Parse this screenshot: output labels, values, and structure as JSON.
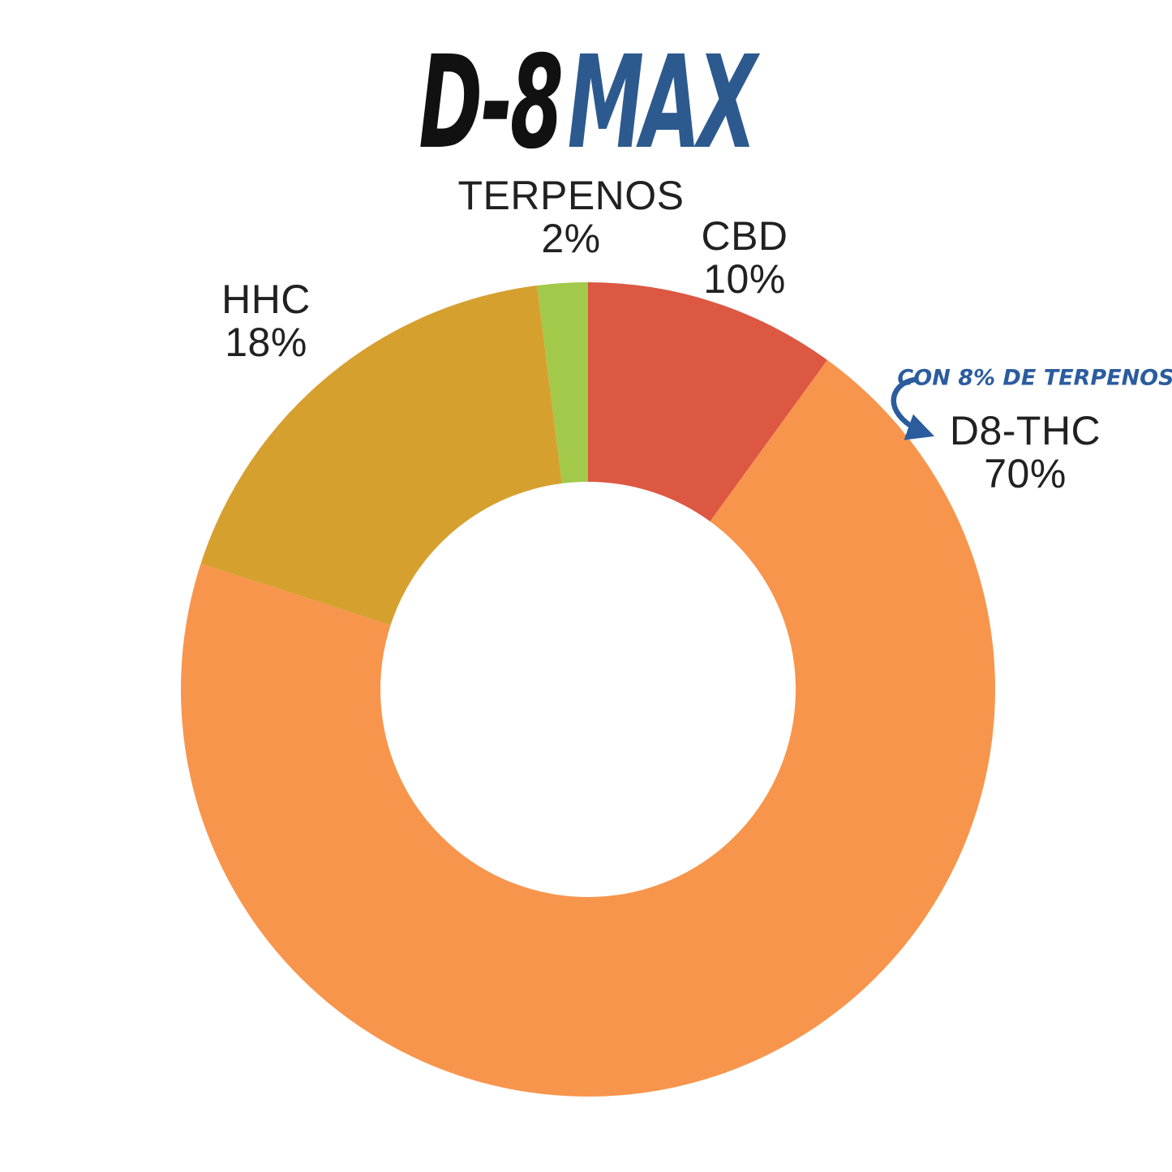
{
  "title": {
    "part1": "D-8",
    "part2": "MAX"
  },
  "chart_data": {
    "type": "donut",
    "title": "D-8 MAX",
    "direction": "clockwise",
    "start_angle_deg": 0,
    "inner_radius_ratio": 0.51,
    "segments": [
      {
        "label": "CBD",
        "value": 10,
        "value_label": "10%",
        "color": "#dc5843"
      },
      {
        "label": "D8-THC",
        "value": 70,
        "value_label": "70%",
        "color": "#f8954c"
      },
      {
        "label": "HHC",
        "value": 18,
        "value_label": "18%",
        "color": "#d6a02f"
      },
      {
        "label": "TERPENOS",
        "value": 2,
        "value_label": "2%",
        "color": "#a2c94a"
      }
    ],
    "annotation": {
      "text": "CON 8% DE TERPENOS",
      "color": "#2b5c9e",
      "points_to": "D8-THC"
    },
    "legend_position": "none",
    "background": "#ffffff"
  },
  "colors": {
    "title_black": "#111111",
    "title_blue": "#2d5a8e",
    "label_text": "#212121",
    "annotation_blue": "#2b5c9e",
    "background": "#ffffff"
  }
}
